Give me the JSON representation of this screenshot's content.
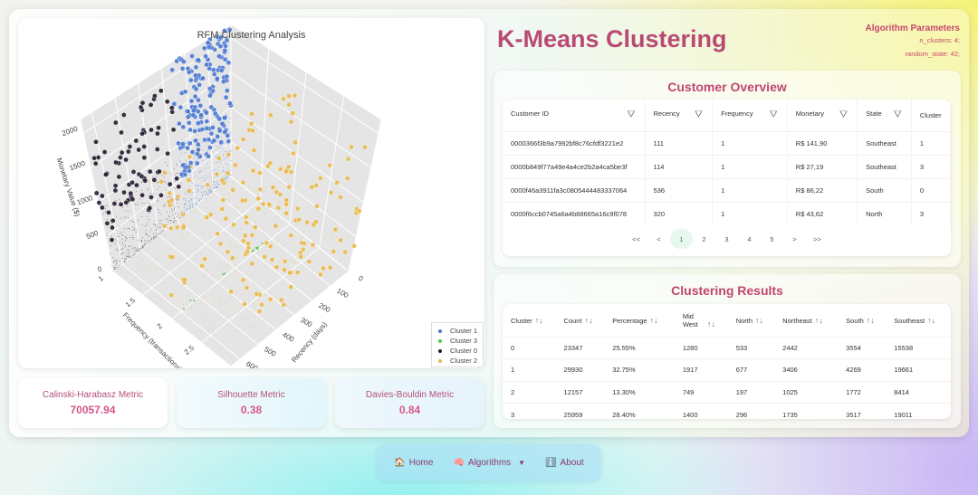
{
  "page_title": "K-Means Clustering",
  "algorithm_parameters": {
    "heading": "Algorithm Parameters",
    "params": [
      "n_clusters: 4;",
      "random_state: 42;"
    ]
  },
  "chart_data": {
    "type": "scatter3d",
    "title": "RFM Clustering Analysis",
    "xlabel": "Recency (days)",
    "ylabel": "Frequency (transactions)",
    "zlabel": "Monetary Value ($)",
    "x_ticks": [
      "0",
      "100",
      "200",
      "300",
      "400",
      "500",
      "600"
    ],
    "y_ticks": [
      "1",
      "1.5",
      "2",
      "2.5"
    ],
    "z_ticks": [
      "0",
      "500",
      "1000",
      "1500",
      "2000"
    ],
    "xlim": [
      0,
      650
    ],
    "ylim": [
      1,
      3
    ],
    "zlim": [
      0,
      2200
    ],
    "legend": [
      {
        "name": "Cluster 1",
        "color": "#4a78d0"
      },
      {
        "name": "Cluster 3",
        "color": "#4cc94c"
      },
      {
        "name": "Cluster 0",
        "color": "#241a30"
      },
      {
        "name": "Cluster 2",
        "color": "#eab84a"
      }
    ],
    "legend_placement": "bottom-right"
  },
  "metrics": [
    {
      "label": "Calinski-Harabasz Metric",
      "value": "70057.94"
    },
    {
      "label": "Silhouette Metric",
      "value": "0.38"
    },
    {
      "label": "Davies-Bouldin Metric",
      "value": "0.84"
    }
  ],
  "overview": {
    "title": "Customer Overview",
    "columns": [
      "Customer ID",
      "Recency",
      "Frequency",
      "Monetary",
      "State",
      "Cluster"
    ],
    "rows": [
      [
        "0000366f3b9a7992bf8c76cfdf3221e2",
        "111",
        "1",
        "R$ 141,90",
        "Southeast",
        "1"
      ],
      [
        "0000b849f77a49e4a4ce2b2a4ca5be3f",
        "114",
        "1",
        "R$ 27,19",
        "Southeast",
        "3"
      ],
      [
        "0000f46a3911fa3c0805444483337064",
        "536",
        "1",
        "R$ 86,22",
        "South",
        "0"
      ],
      [
        "0000f6ccb0745a6a4b88665a16c9f078",
        "320",
        "1",
        "R$ 43,62",
        "North",
        "3"
      ]
    ],
    "pager": [
      "<<",
      "<",
      "1",
      "2",
      "3",
      "4",
      "5",
      ">",
      ">>"
    ],
    "current_page": "1"
  },
  "results": {
    "title": "Clustering Results",
    "columns": [
      "Cluster",
      "Count",
      "Percentage",
      "Mid West",
      "North",
      "Northeast",
      "South",
      "Southeast"
    ],
    "rows": [
      [
        "0",
        "23347",
        "25.55%",
        "1280",
        "533",
        "2442",
        "3554",
        "15538"
      ],
      [
        "1",
        "29930",
        "32.75%",
        "1917",
        "677",
        "3406",
        "4269",
        "19661"
      ],
      [
        "2",
        "12157",
        "13.30%",
        "749",
        "197",
        "1025",
        "1772",
        "8414"
      ],
      [
        "3",
        "25959",
        "28.40%",
        "1400",
        "296",
        "1735",
        "3517",
        "19011"
      ]
    ]
  },
  "nav": [
    {
      "icon": "house-icon",
      "glyph": "🏠",
      "label": "Home"
    },
    {
      "icon": "brain-icon",
      "glyph": "🧠",
      "label": "Algorithms"
    },
    {
      "icon": "info-icon",
      "glyph": "ℹ️",
      "label": "About"
    }
  ]
}
